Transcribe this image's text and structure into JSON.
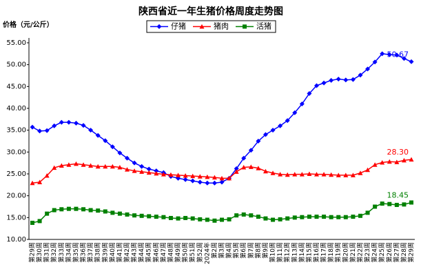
{
  "chart_data": {
    "type": "line",
    "title": "陕西省近一年生猪价格周度走势图",
    "y_label": "价格（元/公斤）",
    "categories": [
      "第29周",
      "第30周",
      "第31周",
      "第32周",
      "第33周",
      "第34周",
      "第35周",
      "第36周",
      "第37周",
      "第38周",
      "第39周",
      "第40周",
      "第41周",
      "第42周",
      "第43周",
      "第44周",
      "第45周",
      "第46周",
      "第47周",
      "第48周",
      "第49周",
      "第50周",
      "第51周",
      "第52周",
      "2024年",
      "第2周",
      "第3周",
      "第4周",
      "第5周",
      "第6周",
      "第7周",
      "第8周",
      "第9周",
      "第10周",
      "第11周",
      "第12周",
      "第13周",
      "第14周",
      "第15周",
      "第16周",
      "第17周",
      "第18周",
      "第19周",
      "第20周",
      "第21周",
      "第22周",
      "第23周",
      "第24周",
      "第25周",
      "第26周",
      "第27周",
      "第28周",
      "第29周"
    ],
    "series": [
      {
        "name": "仔猪",
        "color": "#0000ff",
        "marker": "diamond",
        "values": [
          35.7,
          34.8,
          34.9,
          36.0,
          36.8,
          36.8,
          36.6,
          36.1,
          35.0,
          33.8,
          32.6,
          31.2,
          29.8,
          28.6,
          27.5,
          26.7,
          26.1,
          25.7,
          25.3,
          24.4,
          24.0,
          23.7,
          23.4,
          23.1,
          22.9,
          22.9,
          23.1,
          24.0,
          26.2,
          28.6,
          30.4,
          32.5,
          34.0,
          35.0,
          36.0,
          37.2,
          39.0,
          41.0,
          43.4,
          45.2,
          45.8,
          46.4,
          46.7,
          46.5,
          46.6,
          47.6,
          49.0,
          50.6,
          52.5,
          52.3,
          52.2,
          51.4,
          50.67
        ],
        "value_labels": [
          null,
          null,
          null,
          null,
          null,
          null,
          null,
          null,
          null,
          null,
          null,
          null,
          null,
          null,
          null,
          null,
          null,
          null,
          null,
          null,
          null,
          null,
          null,
          null,
          null,
          null,
          null,
          null,
          null,
          null,
          null,
          null,
          null,
          null,
          null,
          null,
          null,
          null,
          null,
          null,
          null,
          null,
          null,
          null,
          null,
          null,
          null,
          null,
          null,
          null,
          null,
          null,
          "50.67"
        ]
      },
      {
        "name": "猪肉",
        "color": "#ff0000",
        "marker": "triangle",
        "values": [
          22.9,
          23.1,
          24.6,
          26.4,
          26.9,
          27.1,
          27.3,
          27.1,
          26.9,
          26.7,
          26.7,
          26.7,
          26.5,
          26.0,
          25.7,
          25.5,
          25.3,
          25.1,
          24.9,
          24.8,
          24.7,
          24.6,
          24.5,
          24.4,
          24.3,
          24.2,
          24.0,
          24.0,
          25.5,
          26.5,
          26.6,
          26.3,
          25.6,
          25.2,
          24.9,
          24.8,
          24.9,
          24.9,
          25.0,
          24.9,
          24.9,
          24.8,
          24.7,
          24.7,
          24.7,
          25.2,
          25.9,
          27.1,
          27.6,
          27.8,
          27.7,
          28.1,
          28.3
        ],
        "value_labels": [
          null,
          null,
          null,
          null,
          null,
          null,
          null,
          null,
          null,
          null,
          null,
          null,
          null,
          null,
          null,
          null,
          null,
          null,
          null,
          null,
          null,
          null,
          null,
          null,
          null,
          null,
          null,
          null,
          null,
          null,
          null,
          null,
          null,
          null,
          null,
          null,
          null,
          null,
          null,
          null,
          null,
          null,
          null,
          null,
          null,
          null,
          null,
          null,
          null,
          null,
          null,
          null,
          "28.30"
        ]
      },
      {
        "name": "活猪",
        "color": "#008000",
        "marker": "square",
        "values": [
          13.8,
          14.2,
          15.9,
          16.7,
          16.9,
          17.0,
          17.0,
          16.9,
          16.7,
          16.6,
          16.4,
          16.1,
          15.9,
          15.7,
          15.5,
          15.4,
          15.3,
          15.2,
          15.1,
          14.9,
          14.8,
          14.9,
          14.8,
          14.6,
          14.5,
          14.3,
          14.5,
          14.6,
          15.5,
          15.7,
          15.5,
          15.2,
          14.8,
          14.5,
          14.6,
          14.8,
          15.0,
          15.1,
          15.2,
          15.2,
          15.2,
          15.1,
          15.1,
          15.1,
          15.2,
          15.4,
          16.1,
          17.5,
          18.2,
          18.1,
          17.9,
          18.0,
          18.45
        ],
        "value_labels": [
          null,
          null,
          null,
          null,
          null,
          null,
          null,
          null,
          null,
          null,
          null,
          null,
          null,
          null,
          null,
          null,
          null,
          null,
          null,
          null,
          null,
          null,
          null,
          null,
          null,
          null,
          null,
          null,
          null,
          null,
          null,
          null,
          null,
          null,
          null,
          null,
          null,
          null,
          null,
          null,
          null,
          null,
          null,
          null,
          null,
          null,
          null,
          null,
          null,
          null,
          null,
          null,
          "18.45"
        ]
      }
    ],
    "ylim": [
      10,
      55
    ],
    "yticks": [
      {
        "value": 10,
        "label": "10.00"
      },
      {
        "value": 15,
        "label": "15.00"
      },
      {
        "value": 20,
        "label": "20.00"
      },
      {
        "value": 25,
        "label": "25.00"
      },
      {
        "value": 30,
        "label": "30.00"
      },
      {
        "value": 35,
        "label": "35.00"
      },
      {
        "value": 40,
        "label": "40.00"
      },
      {
        "value": 45,
        "label": "45.00"
      },
      {
        "value": 50,
        "label": "50.00"
      },
      {
        "value": 55,
        "label": "55.00"
      }
    ],
    "grid": false,
    "legend": "top"
  }
}
